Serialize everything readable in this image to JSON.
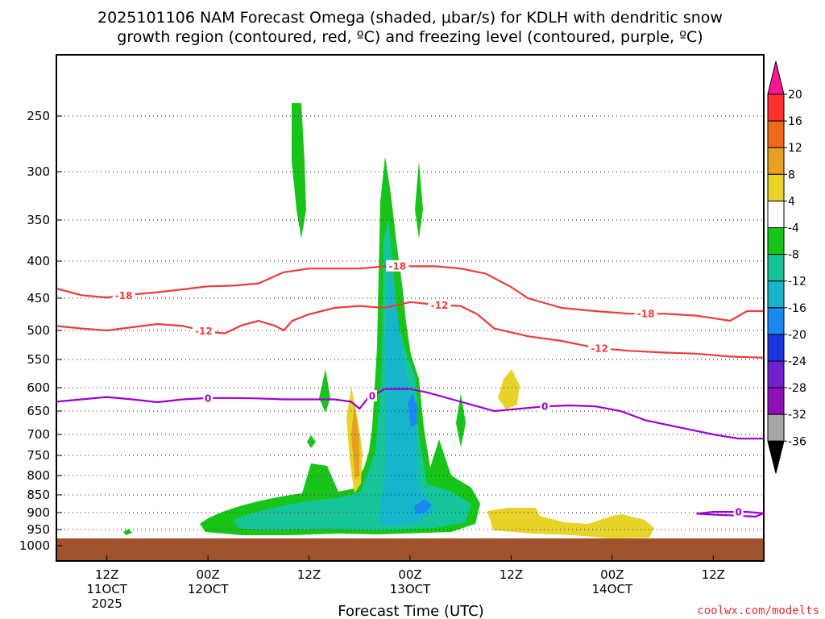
{
  "chart_data": {
    "type": "time-height cross-section",
    "title_line1": "2025101106 NAM Forecast Omega (shaded, μbar/s) for KDLH with dendritic snow",
    "title_line2": "growth region (contoured, red, ºC) and freezing level (contoured, purple, ºC)",
    "xlabel": "Forecast Time (UTC)",
    "credit": "coolwx.com/modelts",
    "x_ticks": [
      {
        "hour": 6,
        "label1": "12Z",
        "label2": "11OCT",
        "label3": "2025"
      },
      {
        "hour": 18,
        "label1": "00Z",
        "label2": "12OCT",
        "label3": ""
      },
      {
        "hour": 30,
        "label1": "12Z",
        "label2": "",
        "label3": ""
      },
      {
        "hour": 42,
        "label1": "00Z",
        "label2": "13OCT",
        "label3": ""
      },
      {
        "hour": 54,
        "label1": "12Z",
        "label2": "",
        "label3": ""
      },
      {
        "hour": 66,
        "label1": "00Z",
        "label2": "14OCT",
        "label3": ""
      },
      {
        "hour": 78,
        "label1": "12Z",
        "label2": "",
        "label3": ""
      }
    ],
    "xlim": [
      0,
      84
    ],
    "y_ticks": [
      250,
      300,
      350,
      400,
      450,
      500,
      550,
      600,
      650,
      700,
      750,
      800,
      850,
      900,
      950,
      1000
    ],
    "ylim": [
      200,
      1020
    ],
    "colorbar": {
      "labels": [
        "20",
        "16",
        "12",
        "8",
        "4",
        "-4",
        "-8",
        "-12",
        "-16",
        "-20",
        "-24",
        "-28",
        "-32",
        "-36"
      ],
      "colors": [
        "#ff1493",
        "#ff3030",
        "#f06a1a",
        "#e8a020",
        "#e8d428",
        "#ffffff",
        "#18c418",
        "#16c49a",
        "#18b4cc",
        "#1a88f0",
        "#1c34e0",
        "#7020d0",
        "#9010b8",
        "#a6a6a6",
        "#000000"
      ]
    },
    "series": [
      {
        "name": "-18",
        "color": "#ee3b3b",
        "points": [
          [
            0,
            437
          ],
          [
            3,
            446
          ],
          [
            6,
            449
          ],
          [
            9,
            445
          ],
          [
            12,
            442
          ],
          [
            15,
            438
          ],
          [
            18,
            434
          ],
          [
            21,
            433
          ],
          [
            24,
            430
          ],
          [
            25,
            425
          ],
          [
            27,
            415
          ],
          [
            30,
            410
          ],
          [
            33,
            410
          ],
          [
            36,
            410
          ],
          [
            40,
            406
          ],
          [
            42,
            407
          ],
          [
            45,
            407
          ],
          [
            48,
            410
          ],
          [
            51,
            417
          ],
          [
            54,
            435
          ],
          [
            56,
            450
          ],
          [
            60,
            465
          ],
          [
            64,
            470
          ],
          [
            68,
            474
          ],
          [
            72,
            474
          ],
          [
            76,
            477
          ],
          [
            80,
            485
          ],
          [
            82,
            470
          ],
          [
            84,
            470
          ]
        ],
        "labels": [
          {
            "x": 8,
            "text": "-18"
          },
          {
            "x": 40.5,
            "text": "-18"
          },
          {
            "x": 70,
            "text": "-18"
          }
        ]
      },
      {
        "name": "-12",
        "color": "#ee3b3b",
        "points": [
          [
            0,
            493
          ],
          [
            3,
            497
          ],
          [
            6,
            500
          ],
          [
            9,
            495
          ],
          [
            12,
            490
          ],
          [
            15,
            493
          ],
          [
            18,
            502
          ],
          [
            20,
            505
          ],
          [
            22,
            492
          ],
          [
            24,
            485
          ],
          [
            26,
            493
          ],
          [
            27,
            500
          ],
          [
            28,
            485
          ],
          [
            30,
            475
          ],
          [
            33,
            465
          ],
          [
            36,
            462
          ],
          [
            39,
            465
          ],
          [
            42,
            456
          ],
          [
            45,
            460
          ],
          [
            48,
            462
          ],
          [
            50,
            475
          ],
          [
            52,
            497
          ],
          [
            56,
            510
          ],
          [
            60,
            518
          ],
          [
            64,
            530
          ],
          [
            68,
            535
          ],
          [
            72,
            538
          ],
          [
            76,
            540
          ],
          [
            80,
            545
          ],
          [
            84,
            547
          ]
        ],
        "labels": [
          {
            "x": 17.5,
            "text": "-12"
          },
          {
            "x": 45.5,
            "text": "-12"
          },
          {
            "x": 64.5,
            "text": "-12"
          }
        ]
      },
      {
        "name": "0",
        "color": "#9b00d3",
        "points": [
          [
            0,
            630
          ],
          [
            3,
            625
          ],
          [
            6,
            620
          ],
          [
            9,
            625
          ],
          [
            12,
            631
          ],
          [
            15,
            625
          ],
          [
            18,
            622
          ],
          [
            21,
            622
          ],
          [
            24,
            623
          ],
          [
            27,
            625
          ],
          [
            30,
            625
          ],
          [
            33,
            625
          ],
          [
            35,
            630
          ],
          [
            36,
            645
          ],
          [
            37,
            622
          ],
          [
            39,
            603
          ],
          [
            42,
            603
          ],
          [
            44,
            610
          ],
          [
            47,
            625
          ],
          [
            50,
            640
          ],
          [
            52,
            650
          ],
          [
            55,
            645
          ],
          [
            58,
            640
          ],
          [
            61,
            638
          ],
          [
            64,
            640
          ],
          [
            67,
            650
          ],
          [
            70,
            670
          ],
          [
            74,
            685
          ],
          [
            78,
            700
          ],
          [
            81,
            710
          ],
          [
            84,
            710
          ]
        ],
        "labels": [
          {
            "x": 18,
            "text": "0"
          },
          {
            "x": 37.5,
            "text": "0"
          },
          {
            "x": 58,
            "text": "0"
          }
        ]
      },
      {
        "name": "0-low",
        "color": "#9b00d3",
        "points": [
          [
            76,
            903
          ],
          [
            78,
            898
          ],
          [
            80,
            898
          ],
          [
            82,
            898
          ],
          [
            84,
            902
          ],
          [
            83,
            912
          ],
          [
            81,
            909
          ],
          [
            78,
            906
          ],
          [
            76,
            903
          ]
        ],
        "labels": [
          {
            "x": 81,
            "text": "0"
          }
        ]
      }
    ]
  }
}
